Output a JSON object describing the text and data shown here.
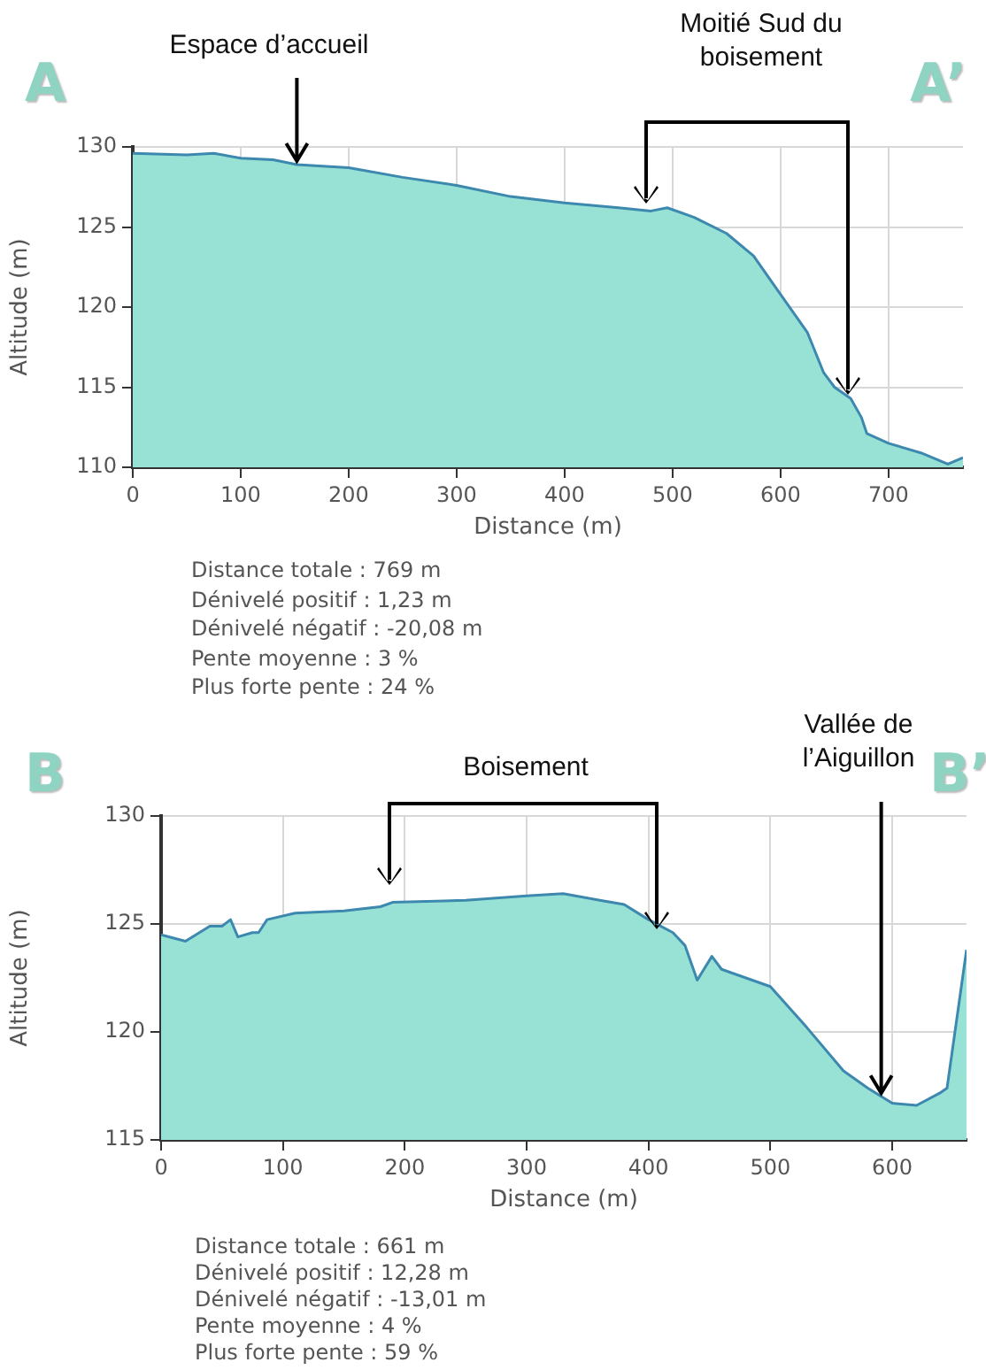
{
  "chart_data": [
    {
      "type": "area",
      "xlabel": "Distance (m)",
      "ylabel": "Altitude (m)",
      "color": "#98e2d5",
      "x": [
        0,
        50,
        75,
        100,
        130,
        152,
        200,
        250,
        300,
        350,
        400,
        450,
        480,
        495,
        520,
        550,
        575,
        600,
        625,
        640,
        650,
        665,
        675,
        680,
        700,
        730,
        755,
        769
      ],
      "values": [
        129.6,
        129.5,
        129.6,
        129.3,
        129.2,
        128.9,
        128.7,
        128.1,
        127.6,
        126.9,
        126.5,
        126.2,
        126.0,
        126.2,
        125.6,
        124.6,
        123.2,
        120.8,
        118.4,
        115.9,
        115.0,
        114.3,
        113.1,
        112.1,
        111.5,
        110.9,
        110.2,
        110.6
      ],
      "xlim": [
        0,
        769
      ],
      "xticks": [
        0,
        100,
        200,
        300,
        400,
        500,
        600,
        700
      ],
      "ylim": [
        110,
        130
      ],
      "yticks": [
        110,
        115,
        120,
        125,
        130
      ],
      "grid": true,
      "annotations": [
        "A",
        "A’",
        {
          "text": "Espace d’accueil",
          "x": 152,
          "y": 128.9
        },
        "Moitié Sud du boisement",
        "Distance totale : 769 m",
        "Dénivelé positif : 1,23 m",
        "Dénivelé négatif : -20,08 m",
        "Pente moyenne : 3 %",
        "Plus forte pente : 24 %"
      ]
    },
    {
      "type": "area",
      "xlabel": "Distance (m)",
      "ylabel": "Altitude (m)",
      "color": "#98e2d5",
      "x": [
        0,
        20,
        40,
        50,
        57,
        63,
        75,
        80,
        87,
        110,
        150,
        180,
        190,
        250,
        300,
        330,
        360,
        380,
        400,
        420,
        430,
        440,
        452,
        460,
        480,
        500,
        530,
        560,
        580,
        600,
        620,
        640,
        645,
        661
      ],
      "values": [
        124.5,
        124.2,
        124.9,
        124.9,
        125.2,
        124.4,
        124.6,
        124.6,
        125.2,
        125.5,
        125.6,
        125.8,
        126.0,
        126.1,
        126.3,
        126.4,
        126.1,
        125.9,
        125.2,
        124.6,
        124.0,
        122.4,
        123.5,
        122.9,
        122.5,
        122.1,
        120.2,
        118.2,
        117.4,
        116.7,
        116.6,
        117.2,
        117.4,
        123.8
      ],
      "xlim": [
        0,
        661
      ],
      "xticks": [
        0,
        100,
        200,
        300,
        400,
        500,
        600
      ],
      "ylim": [
        115,
        130
      ],
      "yticks": [
        115,
        120,
        125,
        130
      ],
      "grid": true,
      "annotations": [
        "B",
        "B’",
        "Boisement",
        {
          "text": "Vallée de l’Aiguillon",
          "x": 591,
          "y": 117.0
        },
        "Distance totale : 661 m",
        "Dénivelé positif : 12,28 m",
        "Dénivelé négatif : -13,01 m",
        "Pente moyenne : 4 %",
        "Plus forte pente : 59 %"
      ]
    }
  ]
}
